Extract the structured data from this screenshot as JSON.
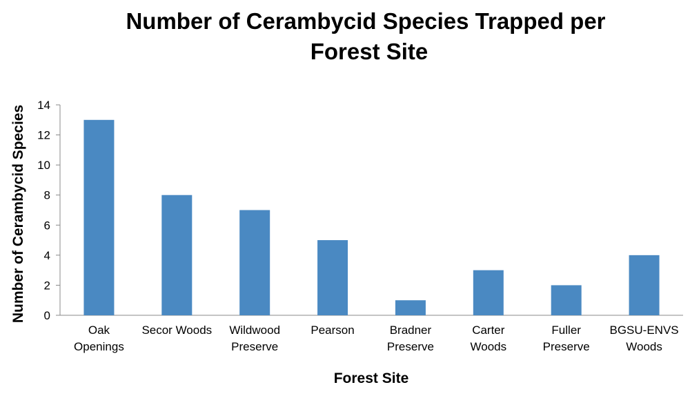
{
  "chart_data": {
    "type": "bar",
    "title_lines": [
      "Number of Cerambycid Species Trapped per",
      "Forest Site"
    ],
    "xlabel": "Forest Site",
    "ylabel": "Number of Cerambycid Species",
    "categories": [
      [
        "Oak",
        "Openings"
      ],
      [
        "Secor Woods"
      ],
      [
        "Wildwood",
        "Preserve"
      ],
      [
        "Pearson"
      ],
      [
        "Bradner",
        "Preserve"
      ],
      [
        "Carter",
        "Woods"
      ],
      [
        "Fuller",
        "Preserve"
      ],
      [
        "BGSU-ENVS",
        "Woods"
      ]
    ],
    "values": [
      13,
      8,
      7,
      5,
      1,
      3,
      2,
      4
    ],
    "ylim": [
      0,
      14
    ],
    "yticks": [
      0,
      2,
      4,
      6,
      8,
      10,
      12,
      14
    ],
    "grid": false,
    "legend": "none",
    "bar_color": "#4a89c2"
  }
}
